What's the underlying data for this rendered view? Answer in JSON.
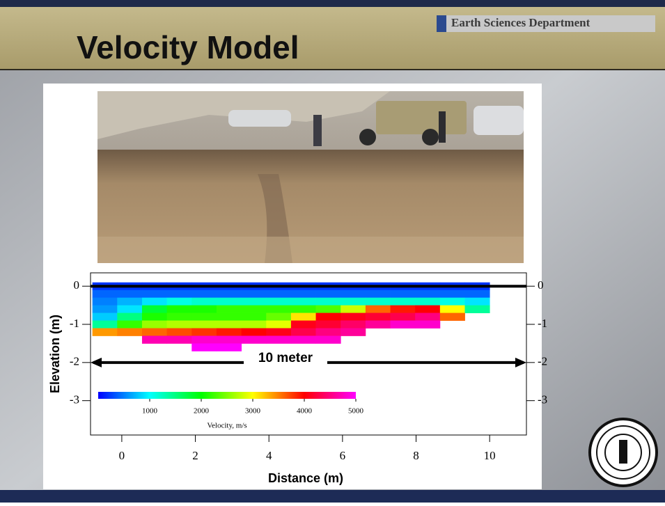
{
  "header": {
    "title": "Velocity Model",
    "department": "Earth Sciences Department"
  },
  "chart_data": {
    "type": "heatmap",
    "xlabel": "Distance (m)",
    "ylabel": "Elevation (m)",
    "annotation": "10 meter",
    "xlim": [
      -0.85,
      11
    ],
    "xticks": [
      0,
      2,
      4,
      6,
      8,
      10
    ],
    "ylim": [
      -3.9,
      0.35
    ],
    "yticks": [
      0,
      -1,
      -2,
      -3
    ],
    "x_edges": [
      -0.8,
      -0.125,
      0.55,
      1.225,
      1.9,
      2.575,
      3.25,
      3.925,
      4.6,
      5.275,
      5.95,
      6.625,
      7.3,
      7.975,
      8.65,
      9.325,
      10.0
    ],
    "y_edges": [
      0.1,
      -0.1,
      -0.3,
      -0.5,
      -0.7,
      -0.9,
      -1.1,
      -1.3,
      -1.5,
      -1.7
    ],
    "values": [
      [
        200,
        200,
        200,
        200,
        200,
        200,
        200,
        200,
        200,
        200,
        200,
        200,
        200,
        200,
        200,
        200
      ],
      [
        400,
        400,
        400,
        400,
        400,
        400,
        400,
        400,
        400,
        400,
        400,
        400,
        400,
        400,
        400,
        400
      ],
      [
        500,
        700,
        900,
        1100,
        1200,
        1200,
        1200,
        1200,
        1200,
        1200,
        1200,
        1200,
        1200,
        1200,
        1100,
        900
      ],
      [
        600,
        900,
        1800,
        2100,
        2100,
        2200,
        2200,
        2200,
        2200,
        2300,
        2800,
        3600,
        3900,
        4000,
        3000,
        1400
      ],
      [
        800,
        1500,
        2100,
        2200,
        2200,
        2200,
        2200,
        2400,
        3100,
        4000,
        4100,
        4200,
        4300,
        4500,
        3600,
        null
      ],
      [
        1400,
        2200,
        2600,
        2700,
        2700,
        2700,
        2700,
        2900,
        4100,
        4200,
        4400,
        4600,
        4800,
        4800,
        null,
        null
      ],
      [
        3400,
        3500,
        3600,
        3700,
        3800,
        3900,
        4000,
        4100,
        4300,
        4500,
        4600,
        null,
        null,
        null,
        null,
        null
      ],
      [
        null,
        null,
        4700,
        4700,
        4800,
        4800,
        4800,
        4800,
        4800,
        4800,
        null,
        null,
        null,
        null,
        null,
        null
      ],
      [
        null,
        null,
        null,
        null,
        5000,
        5000,
        null,
        null,
        null,
        null,
        null,
        null,
        null,
        null,
        null,
        null
      ]
    ],
    "clim": [
      0,
      5000
    ],
    "colors": [
      "#0000ff",
      "#00ffff",
      "#00ff00",
      "#ffff00",
      "#ff0000",
      "#ff00ff"
    ],
    "colorbar_ticks": [
      1000,
      2000,
      3000,
      4000,
      5000
    ],
    "colorbar_label": "Velocity, m/s"
  }
}
